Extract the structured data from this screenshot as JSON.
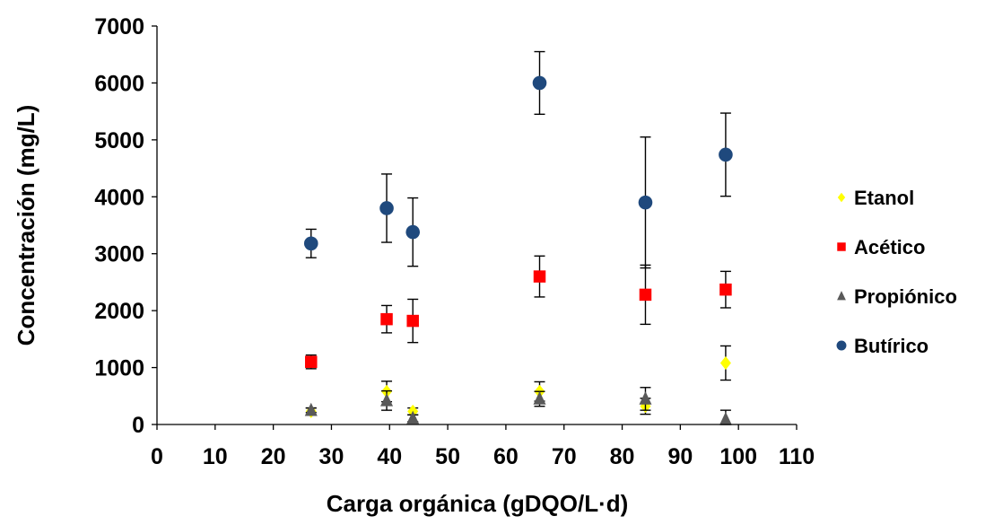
{
  "chart_data": {
    "type": "scatter",
    "xlabel": "Carga orgánica (gDQO/L·d)",
    "ylabel": "Concentración (mg/L)",
    "xlim": [
      0,
      110
    ],
    "ylim": [
      0,
      7000
    ],
    "x_ticks": [
      "0",
      "10",
      "20",
      "30",
      "40",
      "50",
      "60",
      "70",
      "80",
      "90",
      "100",
      "110"
    ],
    "y_ticks": [
      "0",
      "1000",
      "2000",
      "3000",
      "4000",
      "5000",
      "6000",
      "7000"
    ],
    "grid": false,
    "legend_position": "right",
    "x": [
      26.5,
      39.5,
      44,
      65.8,
      84,
      97.8
    ],
    "series": [
      {
        "name": "Etanol",
        "marker": "diamond",
        "color": "#ffff00",
        "values": [
          230,
          580,
          230,
          580,
          320,
          1080
        ],
        "error": [
          60,
          180,
          60,
          170,
          140,
          300
        ]
      },
      {
        "name": "Acético",
        "marker": "square",
        "color": "#ff0000",
        "values": [
          1100,
          1850,
          1820,
          2600,
          2280,
          2370
        ],
        "error": [
          120,
          240,
          380,
          360,
          520,
          320
        ]
      },
      {
        "name": "Propiónico",
        "marker": "triangle",
        "color": "#595959",
        "values": [
          250,
          420,
          110,
          450,
          450,
          90
        ],
        "error": [
          40,
          170,
          60,
          130,
          200,
          160
        ]
      },
      {
        "name": "Butírico",
        "marker": "circle",
        "color": "#1f497d",
        "values": [
          3180,
          3800,
          3380,
          6000,
          3900,
          4740
        ],
        "error": [
          250,
          600,
          600,
          550,
          1150,
          730
        ]
      }
    ]
  }
}
